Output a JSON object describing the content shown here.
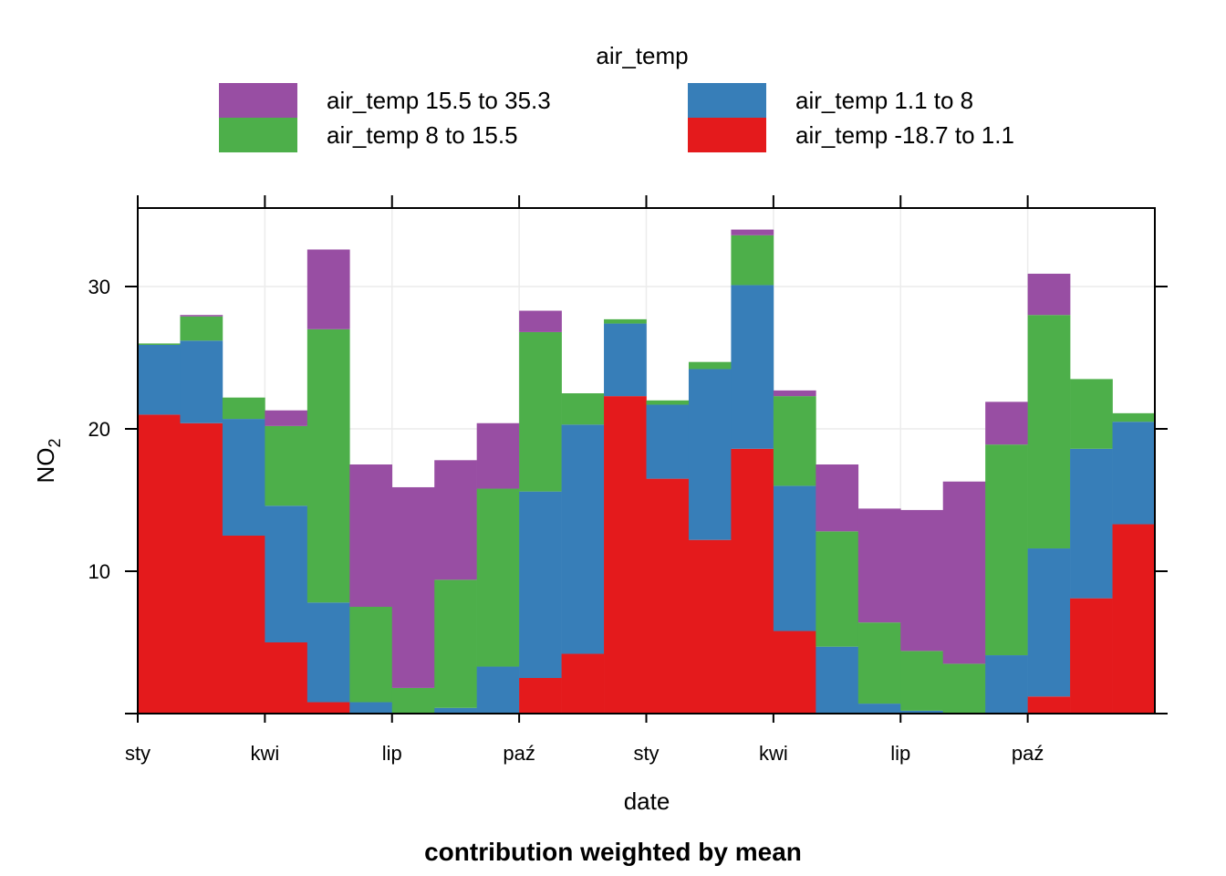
{
  "chart_data": {
    "type": "bar",
    "stacked": true,
    "legend": {
      "title": "air_temp",
      "position": "top",
      "entries": [
        {
          "label": "air_temp 15.5 to 35.3",
          "color": "#984EA3"
        },
        {
          "label": "air_temp 1.1 to 8",
          "color": "#377EB8"
        },
        {
          "label": "air_temp 8 to 15.5",
          "color": "#4DAF4A"
        },
        {
          "label": "air_temp -18.7 to 1.1",
          "color": "#E41A1C"
        }
      ]
    },
    "xlabel": "date",
    "ylabel": "NO",
    "ylabel_subscript": "2",
    "caption": "contribution weighted by mean",
    "x_ticks": [
      "sty",
      "kwi",
      "lip",
      "paź",
      "sty",
      "kwi",
      "lip",
      "paź"
    ],
    "y_ticks": [
      10,
      20,
      30
    ],
    "ylim": [
      0,
      35.5
    ],
    "grid": true,
    "bin_months": 1,
    "series": [
      {
        "name": "air_temp -18.7 to 1.1",
        "color": "#E41A1C",
        "values": [
          21.0,
          20.4,
          12.5,
          5.0,
          0.8,
          0,
          0,
          0,
          0,
          2.5,
          4.2,
          22.3,
          16.5,
          12.2,
          18.6,
          5.8,
          0,
          0,
          0,
          0,
          0,
          1.2,
          8.1,
          13.3
        ]
      },
      {
        "name": "air_temp 1.1 to 8",
        "color": "#377EB8",
        "values": [
          4.9,
          5.8,
          8.2,
          9.6,
          7.0,
          0.8,
          0,
          0.4,
          3.3,
          13.1,
          16.1,
          5.1,
          5.2,
          12.0,
          11.5,
          10.2,
          4.7,
          0.7,
          0.2,
          0,
          4.1,
          10.4,
          10.5,
          7.2
        ]
      },
      {
        "name": "air_temp 8 to 15.5",
        "color": "#4DAF4A",
        "values": [
          0.1,
          1.7,
          1.5,
          5.6,
          19.2,
          6.7,
          1.8,
          9.0,
          12.5,
          11.2,
          2.2,
          0.3,
          0.3,
          0.5,
          3.5,
          6.3,
          8.1,
          5.7,
          4.2,
          3.5,
          14.8,
          16.4,
          4.9,
          0.6
        ]
      },
      {
        "name": "air_temp 15.5 to 35.3",
        "color": "#984EA3",
        "values": [
          0,
          0.1,
          0,
          1.1,
          5.6,
          10.0,
          14.1,
          8.4,
          4.6,
          1.5,
          0,
          0,
          0,
          0,
          0.4,
          0.4,
          4.7,
          8.0,
          9.9,
          12.8,
          3.0,
          2.9,
          0,
          0
        ]
      }
    ]
  }
}
